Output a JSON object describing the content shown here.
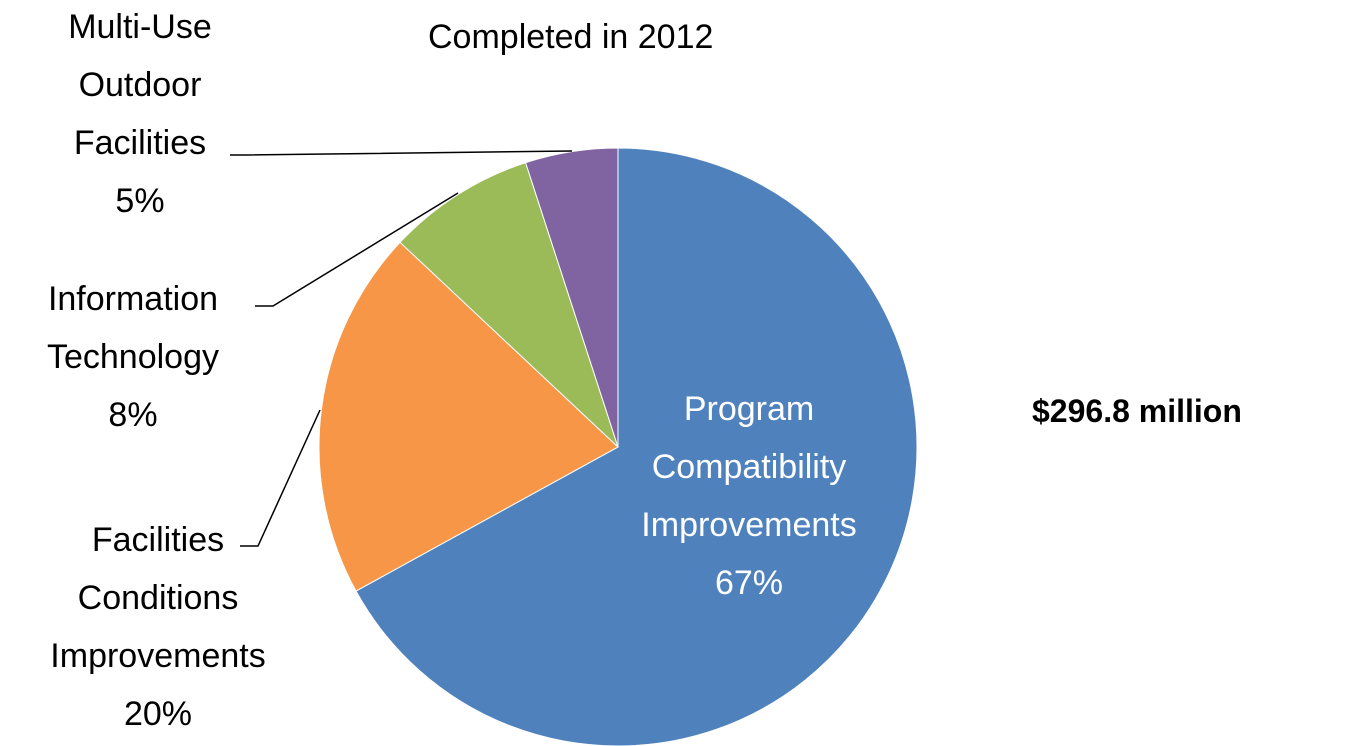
{
  "subtitle": "Completed in 2012",
  "total_label": "$296.8 million",
  "chart_data": {
    "type": "pie",
    "title": "",
    "subtitle": "Completed in 2012",
    "legend": "none",
    "slices": [
      {
        "label": "Program Compatibility Improvements",
        "label_lines": [
          "Program",
          "Compatibility",
          "Improvements"
        ],
        "value": 67,
        "value_label": "67%",
        "color": "#4F81BD"
      },
      {
        "label": "Facilities Conditions Improvements",
        "label_lines": [
          "Facilities",
          "Conditions",
          "Improvements"
        ],
        "value": 20,
        "value_label": "20%",
        "color": "#F79646"
      },
      {
        "label": "Information Technology",
        "label_lines": [
          "Information",
          "Technology"
        ],
        "value": 8,
        "value_label": "8%",
        "color": "#9BBB59"
      },
      {
        "label": "Multi-Use Outdoor Facilities",
        "label_lines": [
          "Multi-Use",
          "Outdoor",
          "Facilities"
        ],
        "value": 5,
        "value_label": "5%",
        "color": "#8064A2"
      }
    ]
  }
}
